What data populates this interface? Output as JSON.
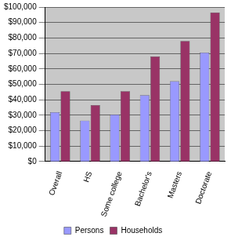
{
  "chart_data": {
    "type": "bar",
    "categories": [
      "Overall",
      "HS",
      "Some college",
      "Bachelor's",
      "Masters",
      "Doctorate"
    ],
    "series": [
      {
        "name": "Persons",
        "color": "#9999ff",
        "values": [
          32000,
          26500,
          30500,
          43000,
          52000,
          70500
        ]
      },
      {
        "name": "Households",
        "color": "#993366",
        "values": [
          45500,
          36500,
          45500,
          68000,
          78000,
          96500
        ]
      }
    ],
    "ylim": [
      0,
      100000
    ],
    "yticks": [
      {
        "value": 0,
        "label": "$0"
      },
      {
        "value": 10000,
        "label": "$10,000"
      },
      {
        "value": 20000,
        "label": "$20,000"
      },
      {
        "value": 30000,
        "label": "$30,000"
      },
      {
        "value": 40000,
        "label": "$40,000"
      },
      {
        "value": 50000,
        "label": "$50,000"
      },
      {
        "value": 60000,
        "label": "$60,000"
      },
      {
        "value": 70000,
        "label": "$70,000"
      },
      {
        "value": 80000,
        "label": "$80,000"
      },
      {
        "value": 90000,
        "label": "$90,000"
      },
      {
        "value": 100000,
        "label": "$100,000"
      }
    ],
    "grid": true,
    "legend": "bottom"
  }
}
